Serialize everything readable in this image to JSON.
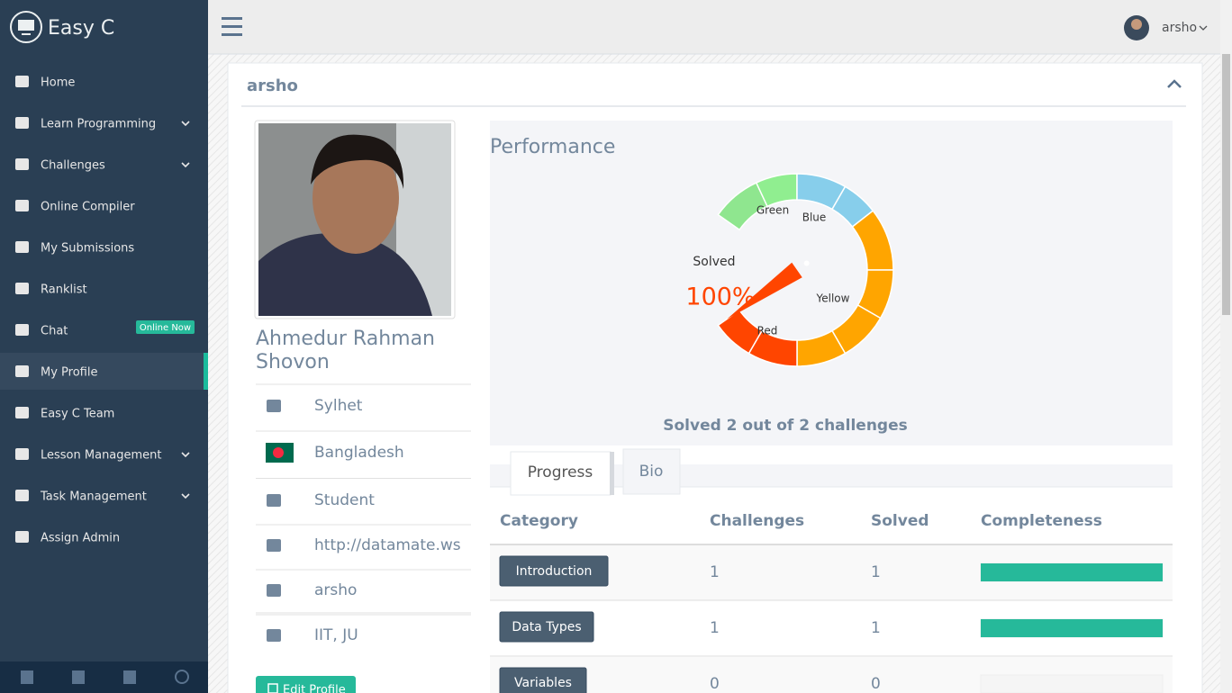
{
  "sidebar": {
    "brand": "Easy C",
    "menu": [
      {
        "label": "Home",
        "has_submenu": false
      },
      {
        "label": "Learn Programming",
        "has_submenu": true
      },
      {
        "label": "Challenges",
        "has_submenu": true
      },
      {
        "label": "Online Compiler",
        "has_submenu": false
      },
      {
        "label": "My Submissions",
        "has_submenu": false
      },
      {
        "label": "Ranklist",
        "has_submenu": false
      },
      {
        "label": "Chat",
        "has_submenu": false,
        "badge": "Online Now"
      },
      {
        "label": "My Profile",
        "has_submenu": false,
        "active": true
      },
      {
        "label": "Easy C Team",
        "has_submenu": false
      },
      {
        "label": "Lesson Management",
        "has_submenu": true
      },
      {
        "label": "Task Management",
        "has_submenu": true
      },
      {
        "label": "Assign Admin",
        "has_submenu": false
      }
    ]
  },
  "topbar": {
    "user": "arsho"
  },
  "panel": {
    "title": "arsho"
  },
  "profile": {
    "name": "Ahmedur Rahman Shovon",
    "details": [
      "Sylhet",
      "Bangladesh",
      "Student",
      "http://datamate.ws",
      "arsho",
      "IIT, JU"
    ],
    "edit_button": "Edit Profile"
  },
  "performance": {
    "title": "Performance",
    "gauge": {
      "label": "Solved",
      "value": 100,
      "value_label": "100%",
      "bands": [
        "Green",
        "Blue",
        "Yellow",
        "Red"
      ]
    },
    "summary": "Solved 2 out of 2 challenges"
  },
  "tabs": [
    "Progress",
    "Bio"
  ],
  "table": {
    "headers": [
      "Category",
      "Challenges",
      "Solved",
      "Completeness"
    ],
    "rows": [
      [
        "Introduction",
        1,
        1,
        100
      ],
      [
        "Data Types",
        1,
        1,
        100
      ],
      [
        "Variables",
        0,
        0,
        0
      ]
    ]
  }
}
